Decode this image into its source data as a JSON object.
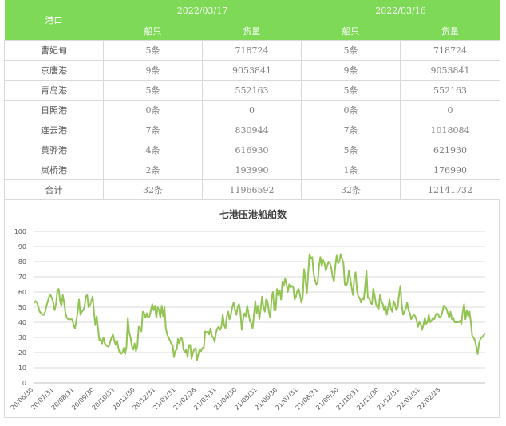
{
  "table": {
    "port_header": "港口",
    "dates": [
      "2022/03/17",
      "2022/03/16"
    ],
    "col_ships": "船只",
    "col_cargo": "货量",
    "rows": [
      {
        "port": "曹妃甸",
        "ships1": "5条",
        "cargo1": "718724",
        "ships2": "5条",
        "cargo2": "718724"
      },
      {
        "port": "京唐港",
        "ships1": "9条",
        "cargo1": "9053841",
        "ships2": "9条",
        "cargo2": "9053841"
      },
      {
        "port": "青岛港",
        "ships1": "5条",
        "cargo1": "552163",
        "ships2": "5条",
        "cargo2": "552163"
      },
      {
        "port": "日照港",
        "ships1": "0条",
        "cargo1": "0",
        "ships2": "0条",
        "cargo2": "0"
      },
      {
        "port": "连云港",
        "ships1": "7条",
        "cargo1": "830944",
        "ships2": "7条",
        "cargo2": "1018084"
      },
      {
        "port": "黄骅港",
        "ships1": "4条",
        "cargo1": "616930",
        "ships2": "5条",
        "cargo2": "621930"
      },
      {
        "port": "岚桥港",
        "ships1": "2条",
        "cargo1": "193990",
        "ships2": "1条",
        "cargo2": "176990"
      },
      {
        "port": "合计",
        "ships1": "32条",
        "cargo1": "11966592",
        "ships2": "32条",
        "cargo2": "12141732"
      }
    ]
  },
  "chart_data": {
    "type": "line",
    "title": "七港压港船舶数",
    "xlabel": "",
    "ylabel": "",
    "ylim": [
      0,
      100
    ],
    "yticks": [
      0,
      10,
      20,
      30,
      40,
      50,
      60,
      70,
      80,
      90,
      100
    ],
    "grid": true,
    "line_color": "#92c353",
    "x_labels": [
      "20/06/30",
      "20/07/31",
      "20/08/31",
      "20/09/30",
      "20/10/31",
      "20/11/30",
      "20/12/31",
      "21/01/31",
      "21/02/28",
      "21/03/31",
      "21/04/30",
      "21/05/31",
      "21/06/30",
      "21/07/31",
      "21/08/31",
      "21/09/30",
      "21/10/31",
      "21/11/30",
      "21/12/31",
      "22/01/31",
      "22/02/28"
    ],
    "series": [
      {
        "values": [
          53,
          54,
          53,
          50,
          47,
          46,
          45,
          45,
          47,
          51,
          54,
          57,
          58,
          56,
          53,
          48,
          52,
          61,
          62,
          54,
          51,
          58,
          53,
          46,
          43,
          42,
          42,
          42,
          42,
          38,
          36,
          41,
          47,
          55,
          45,
          47,
          48,
          50,
          57,
          58,
          50,
          51,
          54,
          57,
          47,
          38,
          44,
          36,
          28,
          29,
          26,
          30,
          26,
          25,
          24,
          24,
          27,
          30,
          32,
          28,
          25,
          28,
          23,
          20,
          19,
          20,
          23,
          19,
          24,
          43,
          33,
          30,
          24,
          22,
          26,
          21,
          24,
          37,
          36,
          34,
          47,
          46,
          43,
          46,
          43,
          44,
          48,
          52,
          48,
          51,
          43,
          50,
          48,
          43,
          51,
          44,
          50,
          36,
          32,
          30,
          28,
          26,
          25,
          17,
          21,
          22,
          29,
          26,
          30,
          29,
          22,
          20,
          22,
          17,
          25,
          25,
          16,
          20,
          22,
          23,
          15,
          19,
          22,
          21,
          23,
          23,
          34,
          33,
          34,
          32,
          36,
          31,
          30,
          27,
          33,
          36,
          37,
          35,
          37,
          45,
          38,
          36,
          44,
          47,
          42,
          45,
          50,
          53,
          48,
          45,
          50,
          52,
          47,
          35,
          42,
          46,
          44,
          51,
          46,
          41,
          39,
          36,
          45,
          54,
          46,
          51,
          42,
          49,
          57,
          50,
          47,
          55,
          54,
          47,
          43,
          56,
          60,
          48,
          48,
          62,
          58,
          61,
          55,
          67,
          64,
          69,
          65,
          60,
          65,
          63,
          64,
          63,
          55,
          57,
          61,
          62,
          58,
          53,
          57,
          75,
          68,
          59,
          72,
          85,
          82,
          83,
          72,
          68,
          65,
          66,
          77,
          83,
          77,
          81,
          79,
          74,
          77,
          80,
          79,
          76,
          70,
          67,
          77,
          84,
          79,
          80,
          85,
          82,
          79,
          65,
          64,
          66,
          74,
          69,
          63,
          58,
          69,
          73,
          61,
          57,
          56,
          53,
          56,
          55,
          64,
          74,
          56,
          56,
          53,
          52,
          62,
          58,
          52,
          50,
          49,
          58,
          54,
          52,
          48,
          51,
          45,
          50,
          55,
          49,
          47,
          54,
          52,
          48,
          50,
          58,
          64,
          52,
          45,
          47,
          49,
          53,
          48,
          46,
          42,
          44,
          45,
          44,
          41,
          37,
          40,
          39,
          35,
          38,
          43,
          39,
          40,
          45,
          40,
          41,
          43,
          42,
          45,
          46,
          45,
          43,
          44,
          47,
          51,
          50,
          49,
          46,
          43,
          47,
          42,
          43,
          40,
          40,
          40,
          40,
          41,
          39,
          47,
          52,
          42,
          48,
          44,
          47,
          40,
          31,
          30,
          28,
          24,
          19,
          26,
          29,
          30,
          31,
          32
        ]
      }
    ]
  }
}
